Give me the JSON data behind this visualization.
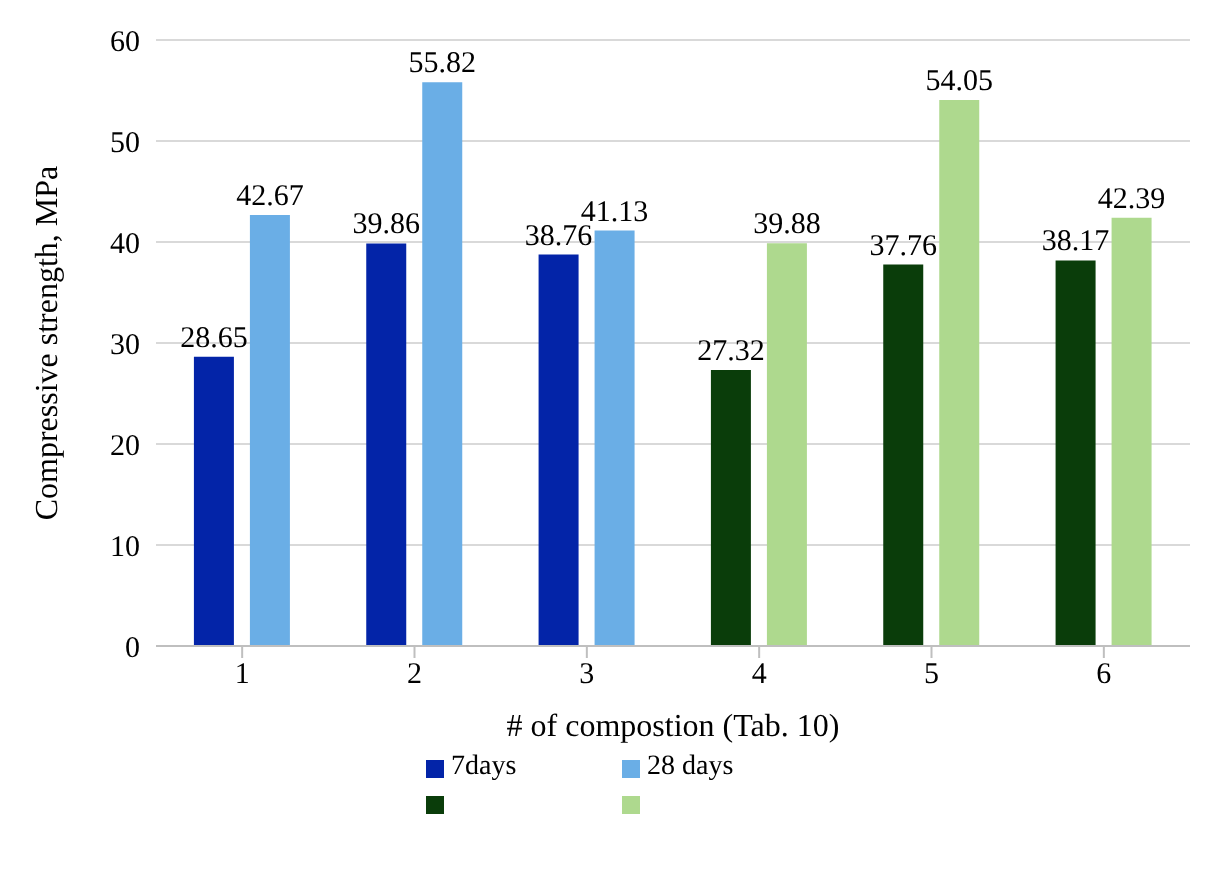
{
  "chart_data": {
    "type": "bar",
    "xlabel": "# of compostion (Tab. 10)",
    "ylabel": "Compressive strength, MPa",
    "categories": [
      "1",
      "2",
      "3",
      "4",
      "5",
      "6"
    ],
    "series": [
      {
        "name": "7days",
        "colors": [
          "#0324a8",
          "#0324a8",
          "#0324a8",
          "#0a3d0a",
          "#0a3d0a",
          "#0a3d0a"
        ],
        "values": [
          28.65,
          39.86,
          38.76,
          27.32,
          37.76,
          38.17
        ]
      },
      {
        "name": "28 days",
        "colors": [
          "#6aaee6",
          "#6aaee6",
          "#6aaee6",
          "#aed98e",
          "#aed98e",
          "#aed98e"
        ],
        "values": [
          42.67,
          55.82,
          41.13,
          39.88,
          54.05,
          42.39
        ]
      }
    ],
    "ylim": [
      0,
      60
    ],
    "yticks": [
      0,
      10,
      20,
      30,
      40,
      50,
      60
    ],
    "grid": "y",
    "legend": "bottom",
    "data_labels": true
  }
}
